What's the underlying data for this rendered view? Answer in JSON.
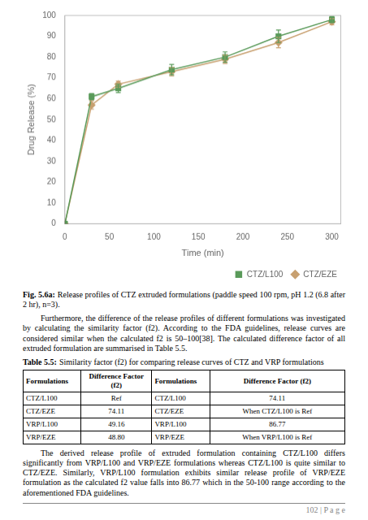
{
  "chart_data": {
    "type": "line",
    "x": [
      0,
      30,
      60,
      120,
      180,
      240,
      300
    ],
    "series": [
      {
        "name": "CTZ/L100",
        "color": "#5a9a5a",
        "marker": "square",
        "values": [
          0,
          61,
          65,
          74,
          80,
          90,
          98
        ],
        "errors": [
          0,
          1.5,
          2.0,
          2.5,
          2.5,
          3.0,
          1.5
        ]
      },
      {
        "name": "CTZ/EZE",
        "color": "#c8a070",
        "marker": "diamond",
        "values": [
          0,
          57,
          67,
          73,
          79,
          87,
          97
        ],
        "errors": [
          0,
          2.0,
          1.5,
          2.0,
          2.0,
          2.5,
          1.5
        ]
      }
    ],
    "xlabel": "Time (min)",
    "ylabel": "Drug Release (%)",
    "xlim": [
      0,
      310
    ],
    "ylim": [
      0,
      100
    ],
    "xticks": [
      0,
      50,
      100,
      150,
      200,
      250,
      300
    ],
    "yticks": [
      0,
      10,
      20,
      30,
      40,
      50,
      60,
      70,
      80,
      90,
      100
    ],
    "grid": false,
    "legend": "lower right"
  },
  "caption": {
    "bold": "Fig. 5.6a:",
    "text": "Release profiles of CTZ extruded formulations (paddle speed 100 rpm, pH 1.2 (6.8 after 2 hr), n=3)."
  },
  "paragraphs": [
    "Furthermore, the difference of the release profiles of different formulations was investigated by calculating the similarity factor (f2). According to the FDA guidelines, release curves are considered similar when the calculated f2 is 50–100[38]. The calculated difference factor of all extruded formulation are summarised in Table 5.5.",
    "The derived release profile of extruded formulation containing CTZ/L100 differs significantly from VRP/L100 and VRP/EZE formulations whereas CTZ/L100 is quite similar to CTZ/EZE.  Similarly, VRP/L100 formulation exhibits similar release profile of VRP/EZE formulation as the calculated f2 value falls into 86.77 which in the 50-100 range according to the aforementioned FDA guidelines."
  ],
  "table": {
    "title_bold": "Table 5.5:",
    "title_text": "Similarity factor (f2) for comparing release curves of CTZ and VRP formulations",
    "headers": [
      "Formulations",
      "Difference Factor (f2)",
      "Formulations",
      "Difference Factor (f2)"
    ],
    "rows": [
      [
        "CTZ/L100",
        "Ref",
        "CTZ/L100",
        "74.11"
      ],
      [
        "CTZ/EZE",
        "74.11",
        "CTZ/EZE",
        "When CTZ/L100 is Ref"
      ],
      [
        "VRP/L100",
        "49.16",
        "VRP/L100",
        "86.77"
      ],
      [
        "VRP/EZE",
        "48.80",
        "VRP/EZE",
        "When VRP/L100 is Ref"
      ]
    ]
  },
  "page_number": "102 | P a g e"
}
